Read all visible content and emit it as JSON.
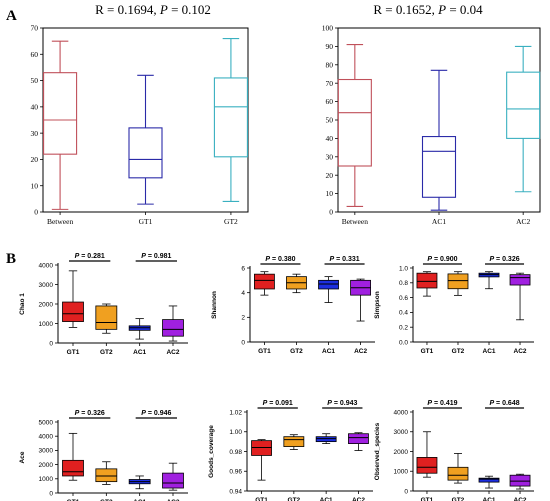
{
  "panel_labels": [
    "A",
    "B"
  ],
  "chart_data": [
    {
      "type": "box",
      "title_stat": "R = 0.1694, ",
      "title_p": "P",
      "title_pval": " = 0.102",
      "categories": [
        "Between",
        "GT1",
        "GT2"
      ],
      "colors": [
        "#c0505a",
        "#2a2aa8",
        "#3ab0c0"
      ],
      "ylim": [
        0,
        70
      ],
      "yticks": [
        "0",
        "10",
        "20",
        "30",
        "40",
        "50",
        "60",
        "70"
      ],
      "boxes": [
        {
          "min": 1,
          "q1": 22,
          "median": 35,
          "q3": 53,
          "max": 65
        },
        {
          "min": 3,
          "q1": 13,
          "median": 20,
          "q3": 32,
          "max": 52
        },
        {
          "min": 4,
          "q1": 21,
          "median": 40,
          "q3": 51,
          "max": 66
        }
      ]
    },
    {
      "type": "box",
      "title_stat": "R = 0.1652, ",
      "title_p": "P",
      "title_pval": " = 0.04",
      "categories": [
        "Between",
        "AC1",
        "AC2"
      ],
      "colors": [
        "#c0505a",
        "#2a2aa8",
        "#3ab0c0"
      ],
      "ylim": [
        0,
        100
      ],
      "yticks": [
        "0",
        "10",
        "20",
        "30",
        "40",
        "50",
        "60",
        "70",
        "80",
        "90",
        "100"
      ],
      "boxes": [
        {
          "min": 3,
          "q1": 25,
          "median": 54,
          "q3": 72,
          "max": 91
        },
        {
          "min": 1,
          "q1": 8,
          "median": 33,
          "q3": 41,
          "max": 77
        },
        {
          "min": 11,
          "q1": 40,
          "median": 56,
          "q3": 76,
          "max": 90
        }
      ]
    },
    {
      "type": "box",
      "ylabel": "Chao 1",
      "categories": [
        "GT1",
        "GT2",
        "AC1",
        "AC2"
      ],
      "colors": [
        "#e02020",
        "#f0a020",
        "#1c2ee0",
        "#a020e0"
      ],
      "ylim": [
        0,
        4000
      ],
      "yticks": [
        "0",
        "1000",
        "2000",
        "3000",
        "4000"
      ],
      "pvalues": [
        " = 0.281",
        " = 0.981"
      ],
      "boxes": [
        {
          "min": 800,
          "q1": 1100,
          "median": 1500,
          "q3": 2100,
          "max": 3700
        },
        {
          "min": 500,
          "q1": 700,
          "median": 1050,
          "q3": 1900,
          "max": 2000
        },
        {
          "min": 200,
          "q1": 650,
          "median": 780,
          "q3": 880,
          "max": 1250
        },
        {
          "min": 100,
          "q1": 350,
          "median": 700,
          "q3": 1200,
          "max": 1900
        }
      ]
    },
    {
      "type": "box",
      "ylabel": "Shannon",
      "categories": [
        "GT1",
        "GT2",
        "AC1",
        "AC2"
      ],
      "colors": [
        "#e02020",
        "#f0a020",
        "#1c2ee0",
        "#a020e0"
      ],
      "ylim": [
        0,
        6
      ],
      "yticks": [
        "0",
        "2",
        "4",
        "6"
      ],
      "pvalues": [
        " = 0.380",
        " = 0.331"
      ],
      "boxes": [
        {
          "min": 3.8,
          "q1": 4.3,
          "median": 5.0,
          "q3": 5.5,
          "max": 5.7
        },
        {
          "min": 4.0,
          "q1": 4.3,
          "median": 4.8,
          "q3": 5.3,
          "max": 5.5
        },
        {
          "min": 3.2,
          "q1": 4.3,
          "median": 4.7,
          "q3": 5.0,
          "max": 5.3
        },
        {
          "min": 1.7,
          "q1": 3.8,
          "median": 4.4,
          "q3": 5.0,
          "max": 5.1
        }
      ]
    },
    {
      "type": "box",
      "ylabel": "Simpson",
      "categories": [
        "GT1",
        "GT2",
        "AC1",
        "AC2"
      ],
      "colors": [
        "#e02020",
        "#f0a020",
        "#1c2ee0",
        "#a020e0"
      ],
      "ylim": [
        0.0,
        1.0
      ],
      "yticks": [
        "0.0",
        "0.2",
        "0.4",
        "0.6",
        "0.8",
        "1.0"
      ],
      "pvalues": [
        " = 0.900",
        " = 0.326"
      ],
      "boxes": [
        {
          "min": 0.62,
          "q1": 0.73,
          "median": 0.82,
          "q3": 0.93,
          "max": 0.95
        },
        {
          "min": 0.63,
          "q1": 0.72,
          "median": 0.83,
          "q3": 0.92,
          "max": 0.95
        },
        {
          "min": 0.72,
          "q1": 0.88,
          "median": 0.91,
          "q3": 0.93,
          "max": 0.95
        },
        {
          "min": 0.3,
          "q1": 0.77,
          "median": 0.87,
          "q3": 0.91,
          "max": 0.93
        }
      ]
    },
    {
      "type": "box",
      "ylabel": "Ace",
      "categories": [
        "GT1",
        "GT2",
        "AC1",
        "AC2"
      ],
      "colors": [
        "#e02020",
        "#f0a020",
        "#1c2ee0",
        "#a020e0"
      ],
      "ylim": [
        0,
        5000
      ],
      "yticks": [
        "0",
        "1000",
        "2000",
        "3000",
        "4000",
        "5000"
      ],
      "pvalues": [
        " = 0.326",
        " = 0.946"
      ],
      "boxes": [
        {
          "min": 900,
          "q1": 1200,
          "median": 1500,
          "q3": 2300,
          "max": 4200
        },
        {
          "min": 600,
          "q1": 800,
          "median": 1200,
          "q3": 1700,
          "max": 2200
        },
        {
          "min": 300,
          "q1": 650,
          "median": 800,
          "q3": 950,
          "max": 1200
        },
        {
          "min": 200,
          "q1": 350,
          "median": 700,
          "q3": 1400,
          "max": 2100
        }
      ]
    },
    {
      "type": "box",
      "ylabel": "Goods_coverage",
      "categories": [
        "GT1",
        "GT2",
        "AC1",
        "AC2"
      ],
      "colors": [
        "#e02020",
        "#f0a020",
        "#1c2ee0",
        "#a020e0"
      ],
      "ylim": [
        0.94,
        1.02
      ],
      "yticks": [
        "0.94",
        "0.96",
        "0.98",
        "1.00",
        "1.02"
      ],
      "pvalues": [
        " = 0.091",
        " = 0.943"
      ],
      "boxes": [
        {
          "min": 0.951,
          "q1": 0.976,
          "median": 0.984,
          "q3": 0.991,
          "max": 0.992
        },
        {
          "min": 0.982,
          "q1": 0.985,
          "median": 0.992,
          "q3": 0.995,
          "max": 0.997
        },
        {
          "min": 0.988,
          "q1": 0.99,
          "median": 0.993,
          "q3": 0.995,
          "max": 0.998
        },
        {
          "min": 0.981,
          "q1": 0.988,
          "median": 0.994,
          "q3": 0.998,
          "max": 0.999
        }
      ]
    },
    {
      "type": "box",
      "ylabel": "Observed_species",
      "categories": [
        "GT1",
        "GT2",
        "AC1",
        "AC2"
      ],
      "colors": [
        "#e02020",
        "#f0a020",
        "#1c2ee0",
        "#a020e0"
      ],
      "ylim": [
        0,
        4000
      ],
      "yticks": [
        "0",
        "1000",
        "2000",
        "3000",
        "4000"
      ],
      "pvalues": [
        " = 0.419",
        " = 0.648"
      ],
      "boxes": [
        {
          "min": 700,
          "q1": 900,
          "median": 1200,
          "q3": 1700,
          "max": 3000
        },
        {
          "min": 400,
          "q1": 550,
          "median": 800,
          "q3": 1200,
          "max": 1900
        },
        {
          "min": 150,
          "q1": 450,
          "median": 600,
          "q3": 650,
          "max": 750
        },
        {
          "min": 100,
          "q1": 250,
          "median": 500,
          "q3": 800,
          "max": 850
        }
      ]
    }
  ]
}
